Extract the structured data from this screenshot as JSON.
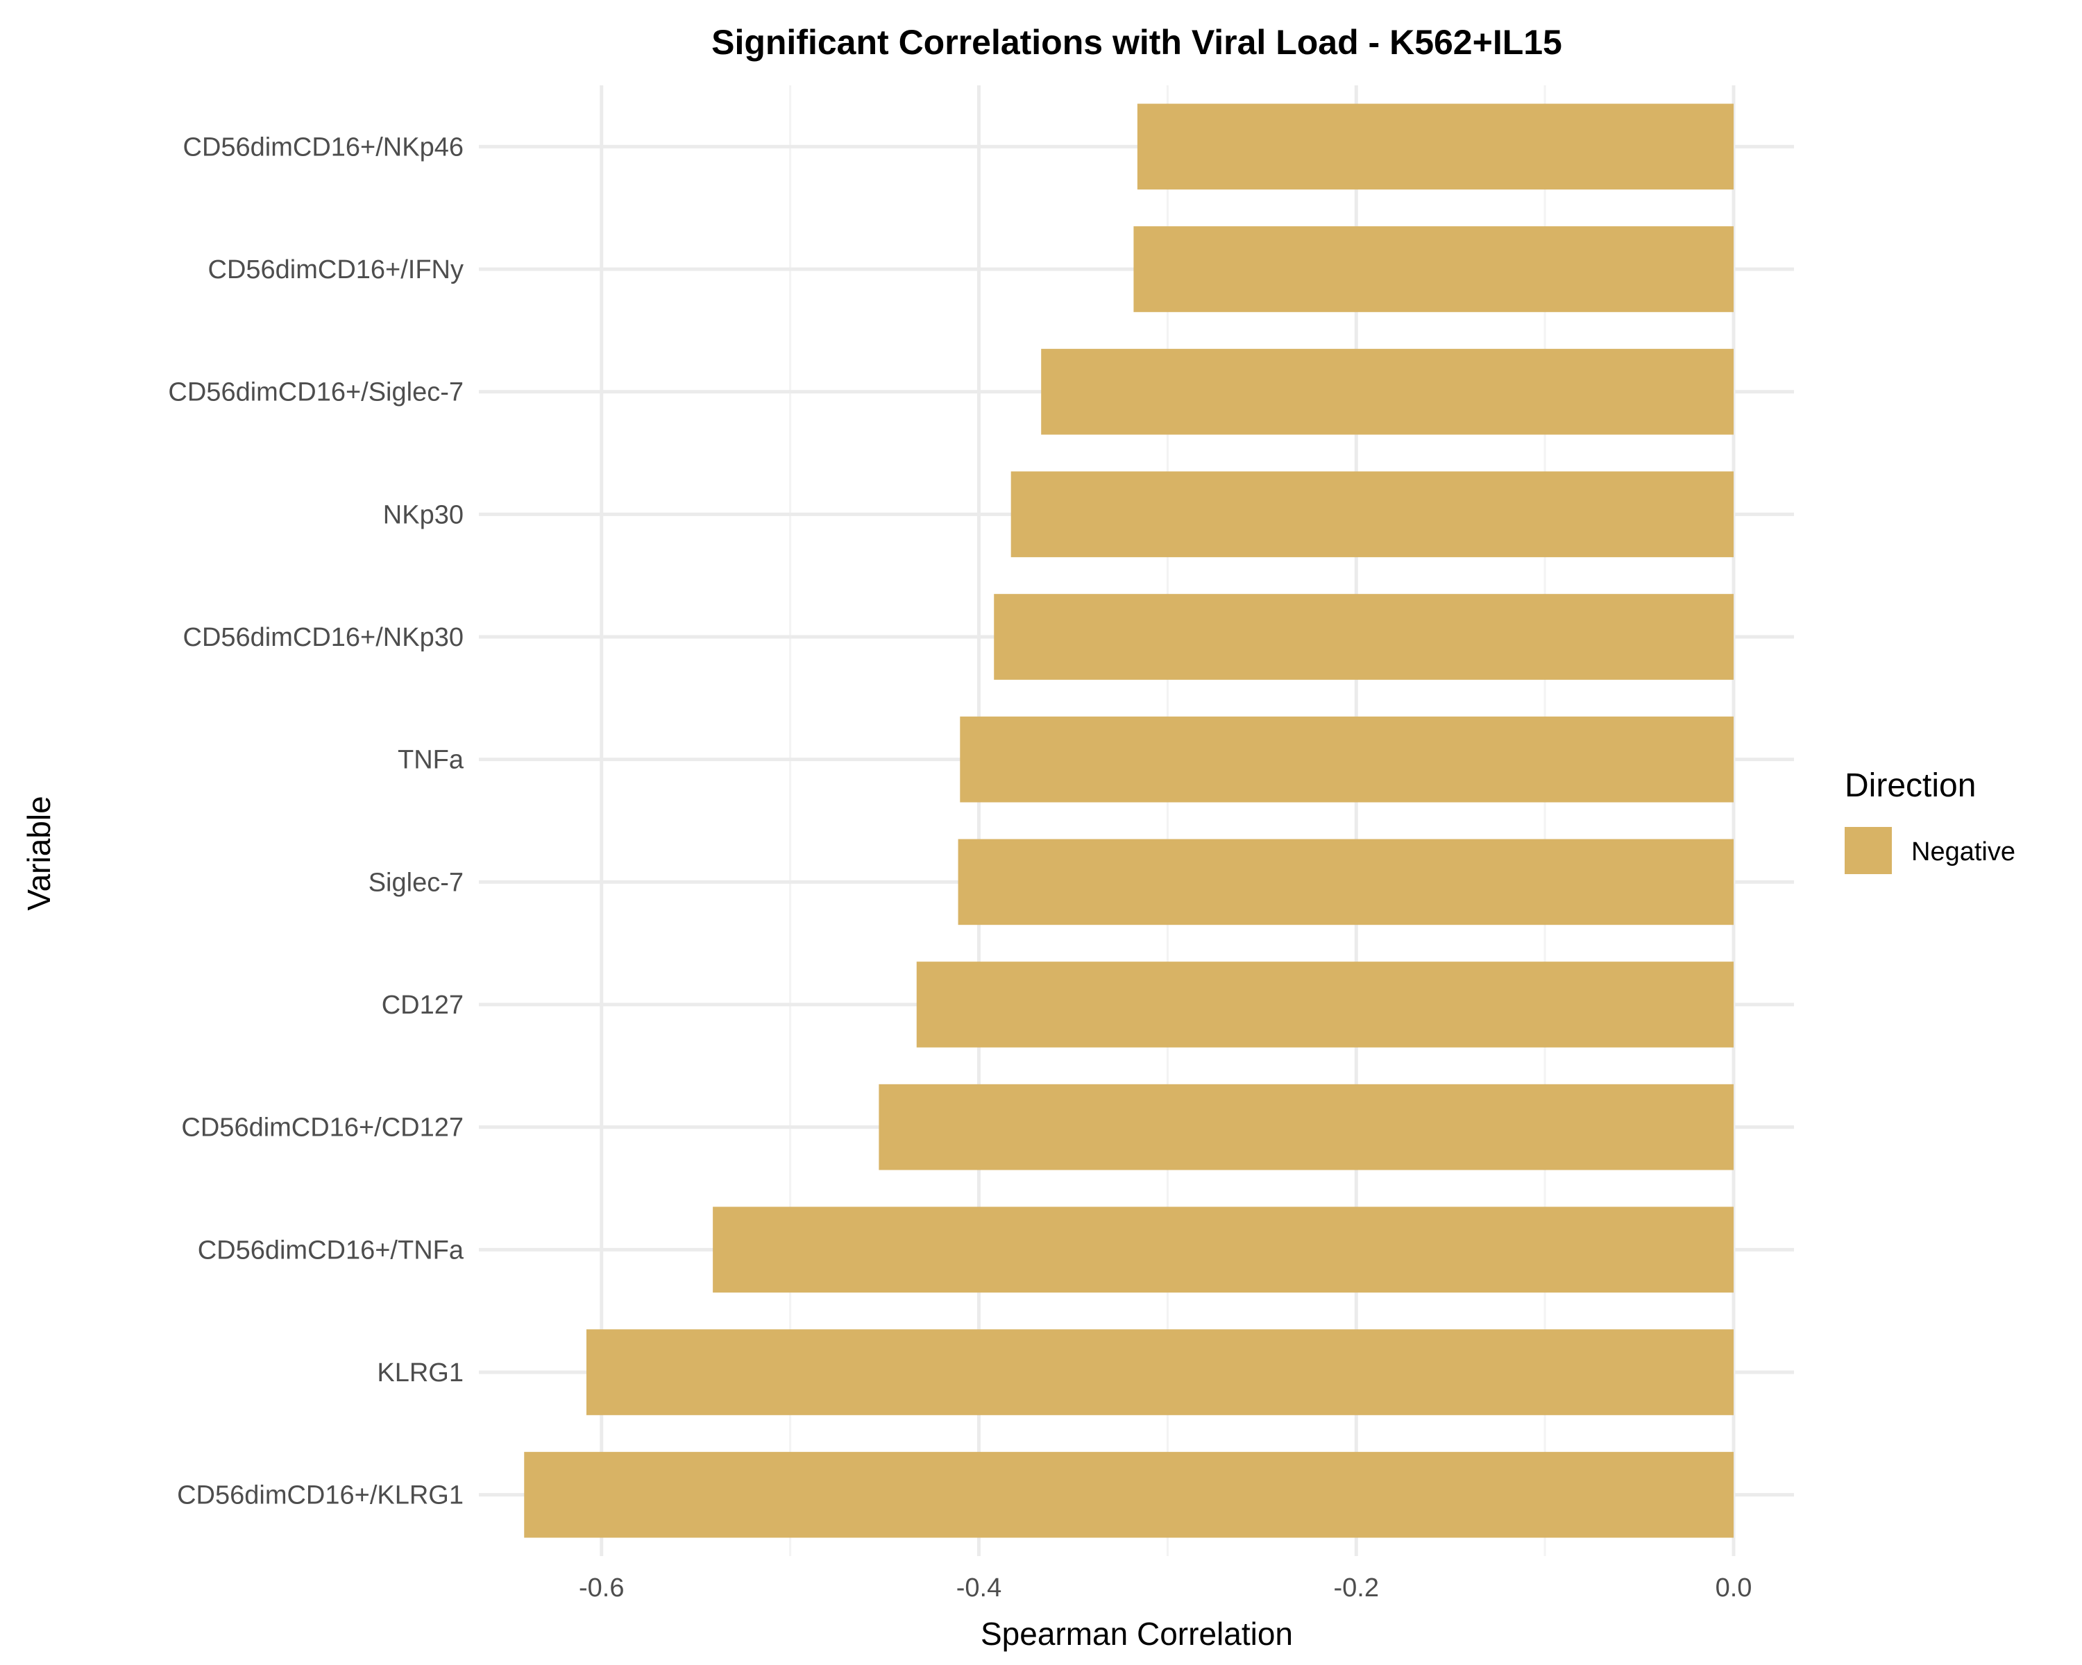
{
  "chart_data": {
    "type": "bar",
    "orientation": "horizontal",
    "title": "Significant Correlations with Viral Load - K562+IL15",
    "xlabel": "Spearman Correlation",
    "ylabel": "Variable",
    "xlim": [
      -0.665,
      0.032
    ],
    "x_ticks": [
      -0.6,
      -0.4,
      -0.2,
      0.0
    ],
    "x_tick_labels": [
      "-0.6",
      "-0.4",
      "-0.2",
      "0.0"
    ],
    "grid": true,
    "categories": [
      "CD56dimCD16+/NKp46",
      "CD56dimCD16+/IFNy",
      "CD56dimCD16+/Siglec-7",
      "NKp30",
      "CD56dimCD16+/NKp30",
      "TNFa",
      "Siglec-7",
      "CD127",
      "CD56dimCD16+/CD127",
      "CD56dimCD16+/TNFa",
      "KLRG1",
      "CD56dimCD16+/KLRG1"
    ],
    "series": [
      {
        "name": "Negative",
        "color": "#d8b365",
        "values": [
          -0.316,
          -0.318,
          -0.367,
          -0.383,
          -0.392,
          -0.41,
          -0.411,
          -0.433,
          -0.453,
          -0.541,
          -0.608,
          -0.641
        ]
      }
    ],
    "legend": {
      "title": "Direction",
      "position": "right",
      "entries": [
        {
          "label": "Negative",
          "color": "#d8b365"
        }
      ]
    }
  }
}
